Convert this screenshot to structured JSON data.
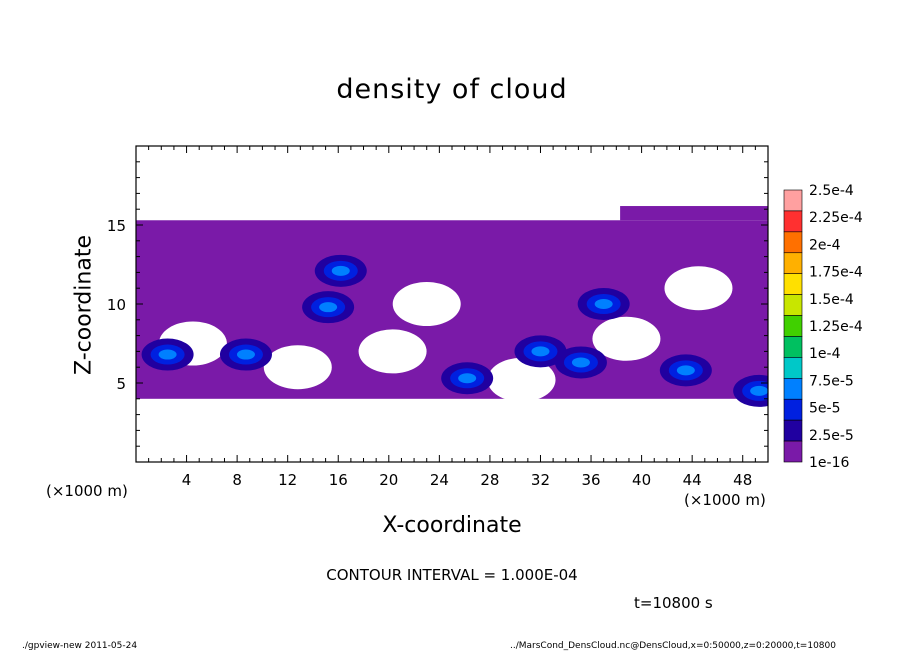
{
  "chart_data": {
    "type": "heatmap",
    "title": "density of cloud",
    "xlabel": "X-coordinate",
    "ylabel": "Z-coordinate",
    "x_unit": "(×1000 m)",
    "xlim": [
      0,
      50
    ],
    "ylim": [
      0,
      20
    ],
    "xticks": [
      4,
      8,
      12,
      16,
      20,
      24,
      28,
      32,
      36,
      40,
      44,
      48
    ],
    "yticks": [
      5,
      10,
      15
    ],
    "colorbar": {
      "labels": [
        "2.5e-4",
        "2.25e-4",
        "2e-4",
        "1.75e-4",
        "1.5e-4",
        "1.25e-4",
        "1e-4",
        "7.5e-5",
        "5e-5",
        "2.5e-5",
        "1e-16"
      ],
      "colors": [
        "#ffa0a0",
        "#ff3030",
        "#ff7000",
        "#ffb000",
        "#ffe000",
        "#c8e600",
        "#40d000",
        "#00c060",
        "#00c8c8",
        "#0080ff",
        "#0020e0",
        "#2000a0",
        "#7a1aa8"
      ]
    },
    "cloud_layer": {
      "base_z": 4,
      "top_z": 15.3,
      "background_color": "#7a1aa8",
      "high_density_cores": [
        {
          "x": 16.2,
          "z": 12.1,
          "level": "2.5e-5"
        },
        {
          "x": 15.2,
          "z": 9.8,
          "level": "2.5e-5"
        },
        {
          "x": 26.2,
          "z": 5.3,
          "level": "2.5e-5"
        },
        {
          "x": 8.7,
          "z": 6.8,
          "level": "2.5e-5"
        },
        {
          "x": 2.5,
          "z": 6.8,
          "level": "2.5e-5"
        },
        {
          "x": 43.5,
          "z": 5.8,
          "level": "2.5e-5"
        },
        {
          "x": 35.2,
          "z": 6.3,
          "level": "2.5e-5"
        },
        {
          "x": 32.0,
          "z": 7.0,
          "level": "2.5e-5"
        },
        {
          "x": 37.0,
          "z": 10.0,
          "level": "2.5e-5"
        },
        {
          "x": 49.3,
          "z": 4.5,
          "level": "2.5e-5"
        }
      ],
      "gaps": [
        {
          "x": 4.5,
          "z": 7.5
        },
        {
          "x": 12.8,
          "z": 6.0
        },
        {
          "x": 20.3,
          "z": 7.0
        },
        {
          "x": 23.0,
          "z": 10.0
        },
        {
          "x": 38.8,
          "z": 7.8
        },
        {
          "x": 44.5,
          "z": 11.0
        },
        {
          "x": 30.5,
          "z": 5.2
        }
      ]
    },
    "contour_interval": "CONTOUR INTERVAL = 1.000E-04",
    "time_label": "t=10800 s"
  },
  "footer": {
    "left": "./gpview-new  2011-05-24",
    "right": "../MarsCond_DensCloud.nc@DensCloud,x=0:50000,z=0:20000,t=10800"
  }
}
